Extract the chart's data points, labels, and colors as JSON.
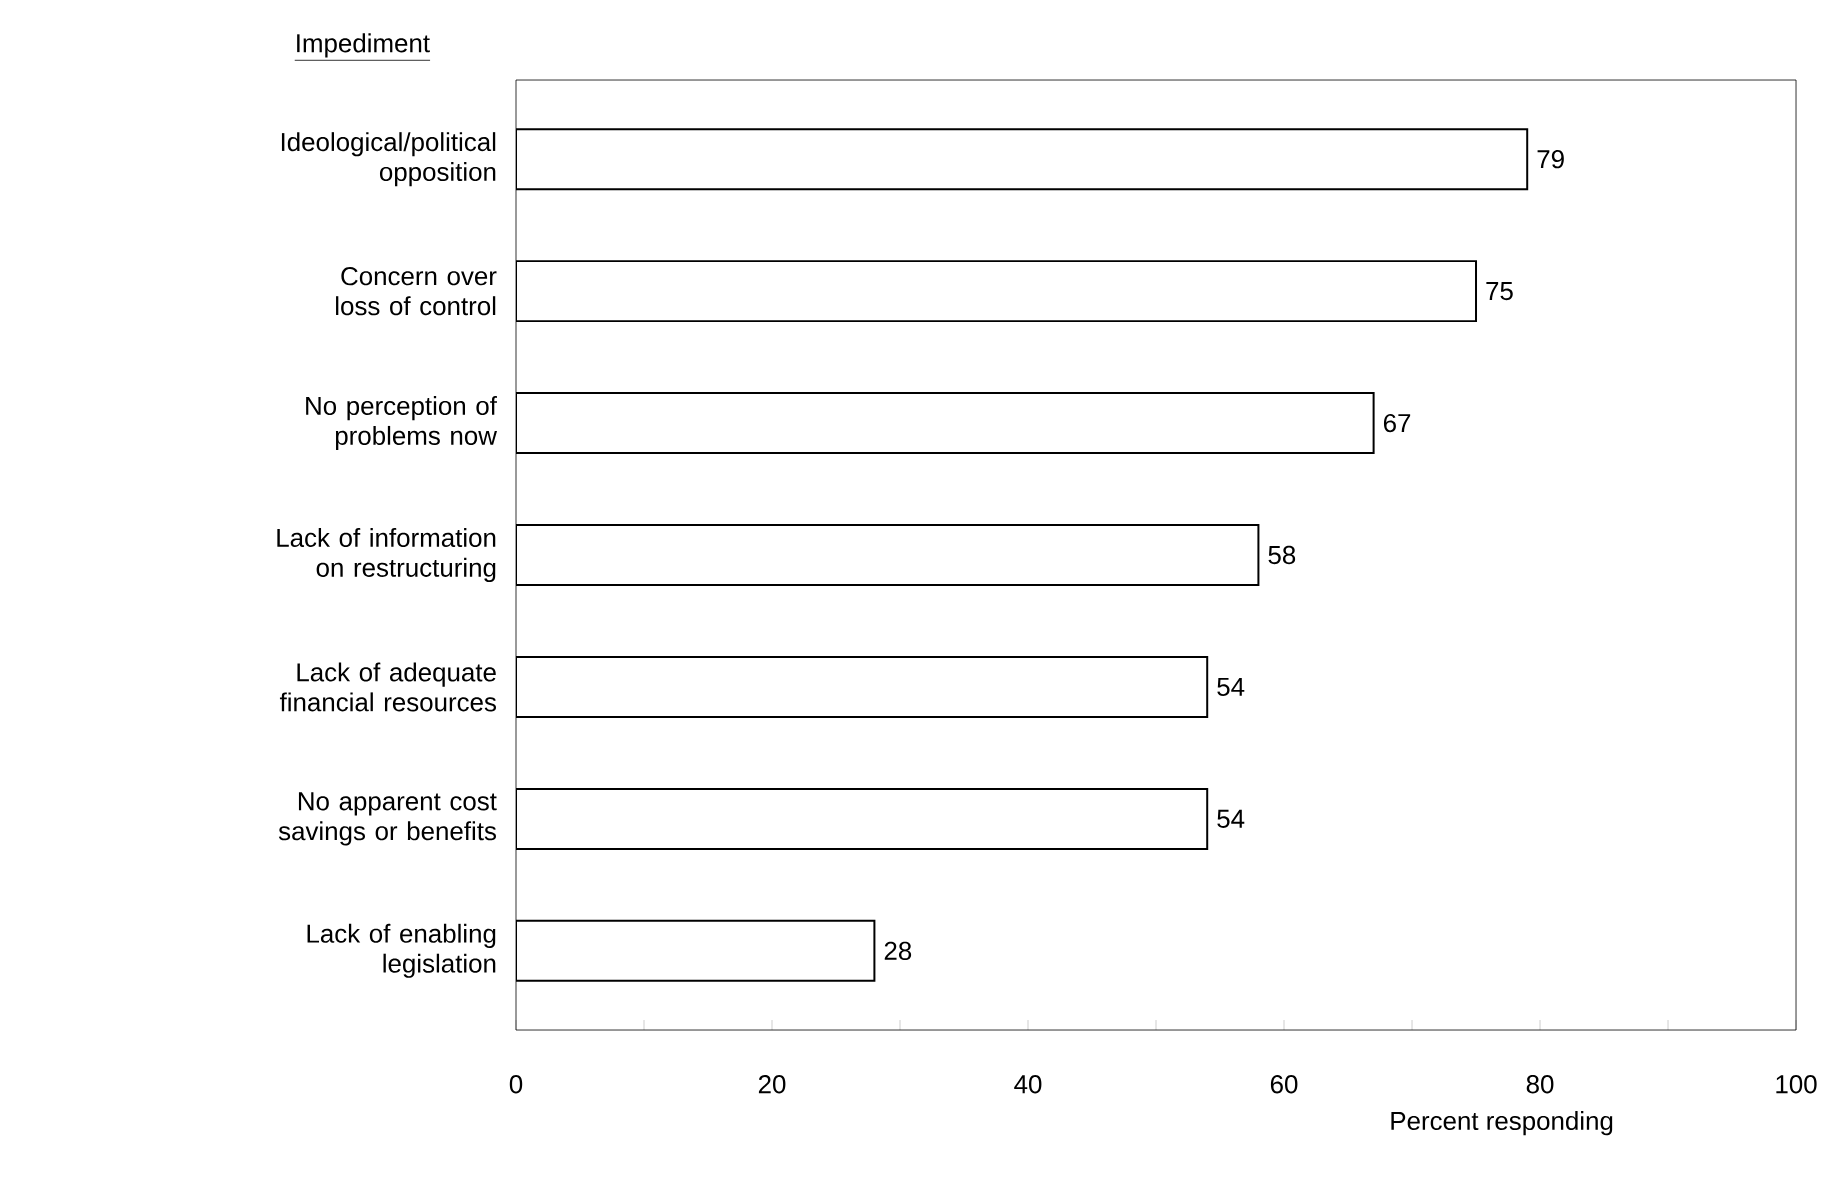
{
  "chart_data": {
    "type": "bar",
    "orientation": "horizontal",
    "ylabel": "Impediment",
    "xlabel": "Percent responding",
    "categories": [
      "Ideological/political opposition",
      "Concern over loss of control",
      "No perception of problems now",
      "Lack of information on restructuring",
      "Lack of adequate financial resources",
      "No apparent cost savings or benefits",
      "Lack of enabling legislation"
    ],
    "values": [
      79,
      75,
      67,
      58,
      54,
      54,
      28
    ],
    "color": "#ffffff",
    "data_labels": true,
    "xlim": [
      0,
      100
    ],
    "xticks": [
      0,
      {
        "value": 10,
        "label": null
      },
      20,
      {
        "value": 30,
        "label": null
      },
      40,
      {
        "value": 50,
        "label": null
      },
      60,
      {
        "value": 70,
        "label": null
      },
      80,
      {
        "value": 90,
        "label": null
      },
      100
    ],
    "grid": false
  }
}
